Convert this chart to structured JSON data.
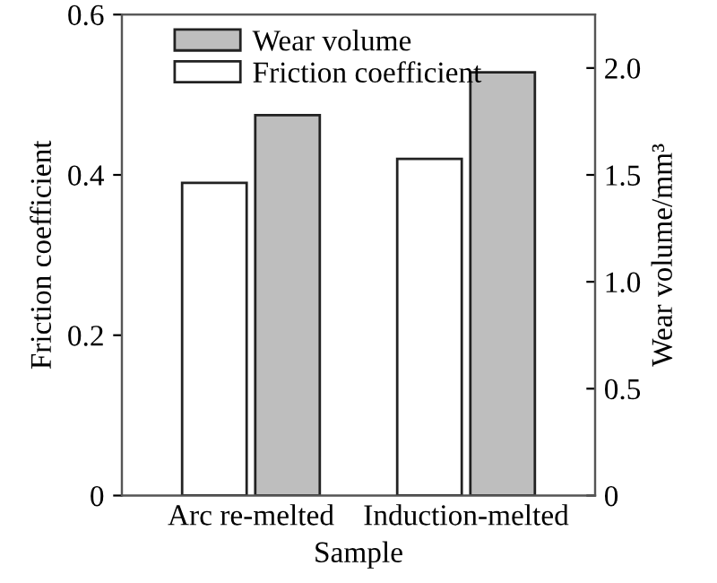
{
  "chart_data": {
    "type": "bar",
    "xlabel": "Sample",
    "ylabel": "Friction coefficient",
    "y2label": "Wear volume/mm³",
    "categories": [
      "Arc re-melted",
      "Induction-melted"
    ],
    "series": [
      {
        "name": "Friction coefficient",
        "color": "#ffffff",
        "values": [
          0.39,
          0.42
        ]
      },
      {
        "name": "Wear volume",
        "color": "#bebebe",
        "values": [
          1.78,
          1.98
        ],
        "axis": "y2"
      }
    ],
    "ylim": [
      0,
      0.6
    ],
    "yticks": [
      0,
      0.2,
      0.4,
      0.6
    ],
    "y2lim": [
      0,
      2.25
    ],
    "y2ticks": [
      0,
      {
        "value": 0.5,
        "label": "0.5"
      },
      {
        "value": 1.0,
        "label": "1.0"
      },
      {
        "value": 1.5,
        "label": "1.5"
      },
      {
        "value": 2.0,
        "label": "2.0"
      }
    ],
    "legend": "top left",
    "grid": false
  }
}
